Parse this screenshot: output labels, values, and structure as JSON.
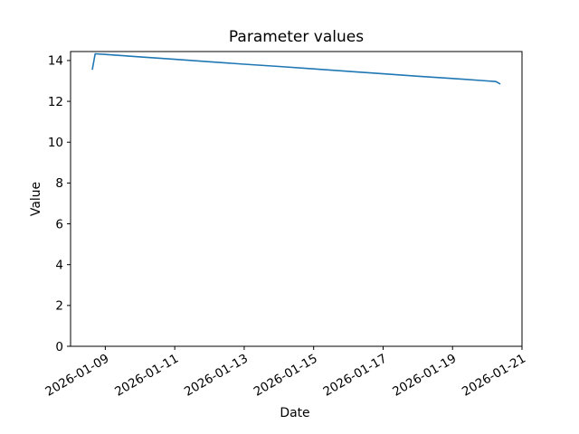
{
  "chart_data": {
    "type": "line",
    "title": "Parameter values",
    "xlabel": "Date",
    "ylabel": "Value",
    "background_color": "#ffffff",
    "axis_color": "#000000",
    "grid": false,
    "legend": false,
    "x_tick_rotation_deg": 30,
    "xlim": [
      "2026-01-08T00:00",
      "2026-01-21T00:00"
    ],
    "ylim": [
      0,
      14.44
    ],
    "yticks": [
      0,
      2,
      4,
      6,
      8,
      10,
      12,
      14
    ],
    "xticks": [
      {
        "value": "2026-01-09T00:00",
        "label": "2026-01-09"
      },
      {
        "value": "2026-01-11T00:00",
        "label": "2026-01-11"
      },
      {
        "value": "2026-01-13T00:00",
        "label": "2026-01-13"
      },
      {
        "value": "2026-01-15T00:00",
        "label": "2026-01-15"
      },
      {
        "value": "2026-01-17T00:00",
        "label": "2026-01-17"
      },
      {
        "value": "2026-01-19T00:00",
        "label": "2026-01-19"
      },
      {
        "value": "2026-01-21T00:00",
        "label": "2026-01-21"
      }
    ],
    "series": [
      {
        "name": "parameter-value",
        "color": "#1f77b4",
        "line_width": 1.6,
        "points": [
          [
            "2026-01-08T15:00",
            13.55
          ],
          [
            "2026-01-08T17:00",
            14.33
          ],
          [
            "2026-01-09T00:00",
            14.3
          ],
          [
            "2026-01-10T00:00",
            14.18
          ],
          [
            "2026-01-11T00:00",
            14.06
          ],
          [
            "2026-01-12T00:00",
            13.94
          ],
          [
            "2026-01-13T00:00",
            13.82
          ],
          [
            "2026-01-14T00:00",
            13.71
          ],
          [
            "2026-01-15T00:00",
            13.59
          ],
          [
            "2026-01-16T00:00",
            13.47
          ],
          [
            "2026-01-17T00:00",
            13.35
          ],
          [
            "2026-01-18T00:00",
            13.23
          ],
          [
            "2026-01-19T00:00",
            13.12
          ],
          [
            "2026-01-20T00:00",
            13.0
          ],
          [
            "2026-01-20T06:00",
            12.97
          ],
          [
            "2026-01-20T09:00",
            12.85
          ]
        ]
      }
    ]
  }
}
